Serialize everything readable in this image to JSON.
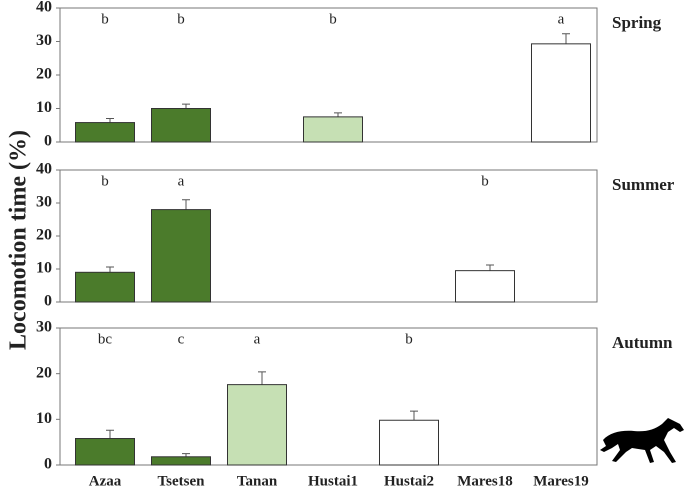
{
  "y_label": "Locomotion time (%)",
  "categories": [
    "Azaa",
    "Tsetsen",
    "Tanan",
    "Hustai1",
    "Hustai2",
    "Mares18",
    "Mares19"
  ],
  "colors": [
    "#4b7b2b",
    "#4b7b2b",
    "#c6e0b4",
    "#c6e0b4",
    "#ffffff",
    "#ffffff",
    "#ffffff"
  ],
  "chart_data": [
    {
      "type": "bar",
      "title": "Spring",
      "values": [
        5.8,
        10,
        null,
        7.5,
        null,
        null,
        29.3
      ],
      "errors": [
        1.2,
        1.3,
        null,
        1.2,
        null,
        null,
        3
      ],
      "annotations": [
        "b",
        "b",
        null,
        "b",
        null,
        null,
        "a"
      ],
      "ylim": [
        0,
        40
      ],
      "yticks": [
        0,
        10,
        20,
        30,
        40
      ]
    },
    {
      "type": "bar",
      "title": "Summer",
      "values": [
        9,
        28,
        null,
        null,
        null,
        9.5,
        null
      ],
      "errors": [
        1.6,
        3,
        null,
        null,
        null,
        1.7,
        null
      ],
      "annotations": [
        "b",
        "a",
        null,
        null,
        null,
        "b",
        null
      ],
      "ylim": [
        0,
        40
      ],
      "yticks": [
        0,
        10,
        20,
        30,
        40
      ]
    },
    {
      "type": "bar",
      "title": "Autumn",
      "values": [
        5.8,
        1.8,
        17.6,
        null,
        9.8,
        null,
        null
      ],
      "errors": [
        1.8,
        0.7,
        2.8,
        null,
        2,
        null,
        null
      ],
      "annotations": [
        "bc",
        "c",
        "a",
        null,
        "b",
        null,
        null
      ],
      "ylim": [
        0,
        30
      ],
      "yticks": [
        0,
        10,
        20,
        30
      ]
    }
  ]
}
